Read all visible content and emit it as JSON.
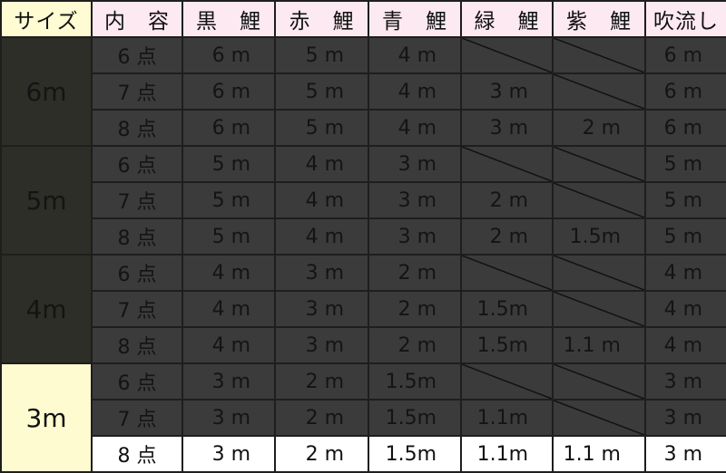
{
  "headers": [
    "サイズ",
    "内　容",
    "黒　鯉",
    "赤　鯉",
    "青　鯉",
    "緑　鯉",
    "紫　鯉",
    "吹流し"
  ],
  "groups": [
    {
      "size": "6m",
      "rows": [
        [
          "6 点",
          "6 m",
          "5 m",
          "4 m",
          "",
          "",
          "6 m"
        ],
        [
          "7 点",
          "6 m",
          "5 m",
          "4 m",
          "3 m",
          "",
          "6 m"
        ],
        [
          "8 点",
          "6 m",
          "5 m",
          "4 m",
          "3 m",
          "2 m",
          "6 m"
        ]
      ]
    },
    {
      "size": "5m",
      "rows": [
        [
          "6 点",
          "5 m",
          "4 m",
          "3 m",
          "",
          "",
          "5 m"
        ],
        [
          "7 点",
          "5 m",
          "4 m",
          "3 m",
          "2 m",
          "",
          "5 m"
        ],
        [
          "8 点",
          "5 m",
          "4 m",
          "3 m",
          "2 m",
          "1.5m",
          "5 m"
        ]
      ]
    },
    {
      "size": "4m",
      "rows": [
        [
          "6 点",
          "4 m",
          "3 m",
          "2 m",
          "",
          "",
          "4 m"
        ],
        [
          "7 点",
          "4 m",
          "3 m",
          "2 m",
          "1.5m",
          "",
          "4 m"
        ],
        [
          "8 点",
          "4 m",
          "3 m",
          "2 m",
          "1.5m",
          "1.1 m",
          "4 m"
        ]
      ]
    },
    {
      "size": "3m",
      "rows": [
        [
          "6 点",
          "3 m",
          "2 m",
          "1.5m",
          "",
          "",
          "3 m"
        ],
        [
          "7 点",
          "3 m",
          "2 m",
          "1.5m",
          "1.1m",
          "",
          "3 m"
        ],
        [
          "8 点",
          "3 m",
          "2 m",
          "1.5m",
          "1.1m",
          "1.1 m",
          "3 m"
        ]
      ]
    }
  ],
  "highlight_row": "3m / 8 点",
  "colors": {
    "header": "#fde9f1",
    "size_header": "#fffbd2",
    "cell": "#3b3b3b",
    "size_cell": "#2e2e28",
    "highlight": "#ffffff"
  }
}
